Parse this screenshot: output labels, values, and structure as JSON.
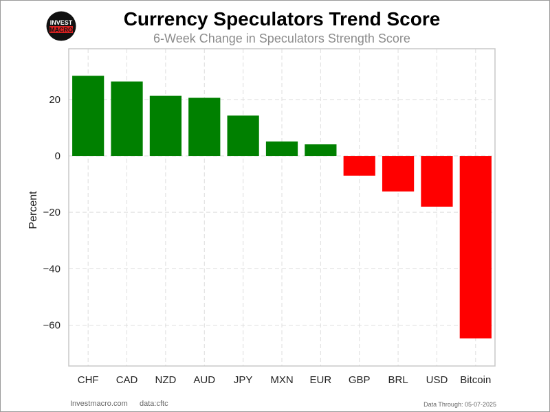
{
  "header": {
    "title": "Currency Speculators Trend Score",
    "subtitle": "6-Week Change in Speculators Strength Score"
  },
  "logo": {
    "line1": "INVEST",
    "line2": "MACRO",
    "bg_color": "#111111",
    "accent_color": "#d62020"
  },
  "footer": {
    "site": "Investmacro.com",
    "source": "data:cftc",
    "data_through": "Data Through: 05-07-2025"
  },
  "chart_data": {
    "type": "bar",
    "title": "Currency Speculators Trend Score",
    "subtitle": "6-Week Change in Speculators Strength Score",
    "xlabel": "",
    "ylabel": "Percent",
    "categories": [
      "CHF",
      "CAD",
      "NZD",
      "AUD",
      "JPY",
      "MXN",
      "EUR",
      "GBP",
      "BRL",
      "USD",
      "Bitcoin"
    ],
    "values": [
      28.4,
      26.4,
      21.3,
      20.6,
      14.3,
      5.1,
      4.1,
      -7.0,
      -12.6,
      -18.0,
      -64.7
    ],
    "ylim": [
      -74.5,
      38
    ],
    "yticks": [
      20,
      0,
      -20,
      -40,
      -60
    ],
    "ytick_labels": [
      "20",
      "0",
      "−20",
      "−40",
      "−60"
    ],
    "positive_color": "#008000",
    "negative_color": "#ff0000",
    "grid": true,
    "legend": "none"
  }
}
